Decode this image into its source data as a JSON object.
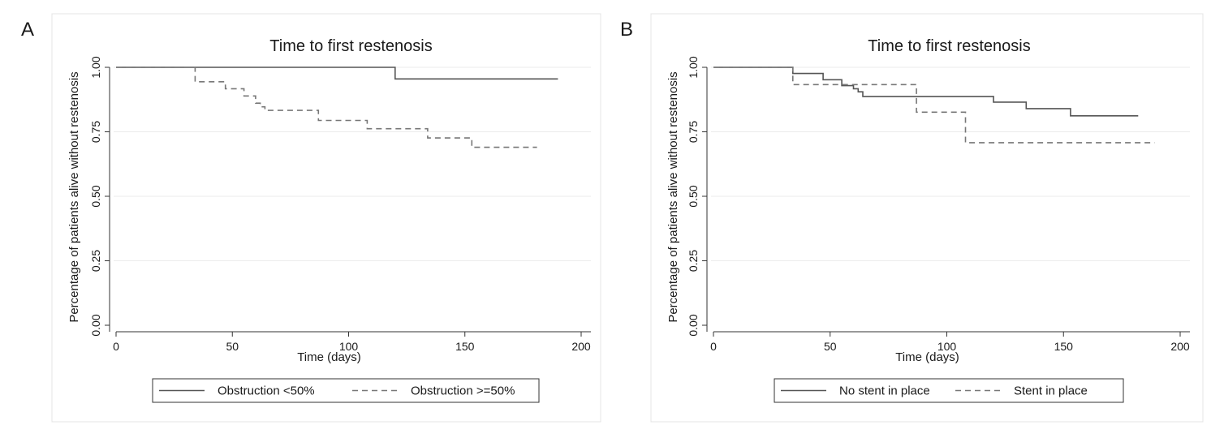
{
  "chart_data": [
    {
      "type": "line",
      "panel_label": "A",
      "title": "Time to first restenosis",
      "xlabel": "Time (days)",
      "ylabel": "Percentage of patients alive without restenosis",
      "xlim": [
        0,
        200
      ],
      "ylim": [
        0,
        1
      ],
      "xticks": [
        "0",
        "50",
        "100",
        "150",
        "200"
      ],
      "yticks": [
        "0.00",
        "0.25",
        "0.50",
        "0.75",
        "1.00"
      ],
      "grid": "horizontal",
      "legend_position": "bottom",
      "series": [
        {
          "name": "Obstruction <50%",
          "style": "solid",
          "color": "#555555",
          "x": [
            0,
            120,
            120,
            190
          ],
          "y": [
            1.0,
            1.0,
            0.955,
            0.955
          ]
        },
        {
          "name": "Obstruction >=50%",
          "style": "dashed",
          "color": "#777777",
          "x": [
            0,
            34,
            34,
            47,
            47,
            55,
            55,
            60,
            60,
            62,
            62,
            64,
            64,
            87,
            87,
            108,
            108,
            134,
            134,
            153,
            153,
            181
          ],
          "y": [
            1.0,
            1.0,
            0.944,
            0.944,
            0.917,
            0.917,
            0.889,
            0.889,
            0.861,
            0.861,
            0.847,
            0.847,
            0.833,
            0.833,
            0.794,
            0.794,
            0.762,
            0.762,
            0.726,
            0.726,
            0.69,
            0.69
          ]
        }
      ]
    },
    {
      "type": "line",
      "panel_label": "B",
      "title": "Time to first restenosis",
      "xlabel": "Time (days)",
      "ylabel": "Percentage of patients alive without restenosis",
      "xlim": [
        0,
        200
      ],
      "ylim": [
        0,
        1
      ],
      "xticks": [
        "0",
        "50",
        "100",
        "150",
        "200"
      ],
      "yticks": [
        "0.00",
        "0.25",
        "0.50",
        "0.75",
        "1.00"
      ],
      "grid": "horizontal",
      "legend_position": "bottom",
      "series": [
        {
          "name": "No stent in place",
          "style": "solid",
          "color": "#555555",
          "x": [
            0,
            34,
            34,
            47,
            47,
            55,
            55,
            60,
            60,
            62,
            62,
            64,
            64,
            120,
            120,
            134,
            134,
            153,
            153,
            182
          ],
          "y": [
            1.0,
            1.0,
            0.976,
            0.976,
            0.952,
            0.952,
            0.929,
            0.929,
            0.917,
            0.917,
            0.905,
            0.905,
            0.887,
            0.887,
            0.865,
            0.865,
            0.84,
            0.84,
            0.812,
            0.812
          ]
        },
        {
          "name": "Stent in place",
          "style": "dashed",
          "color": "#777777",
          "x": [
            0,
            34,
            34,
            87,
            87,
            108,
            108,
            189
          ],
          "y": [
            1.0,
            1.0,
            0.933,
            0.933,
            0.826,
            0.826,
            0.708,
            0.708
          ]
        }
      ]
    }
  ]
}
